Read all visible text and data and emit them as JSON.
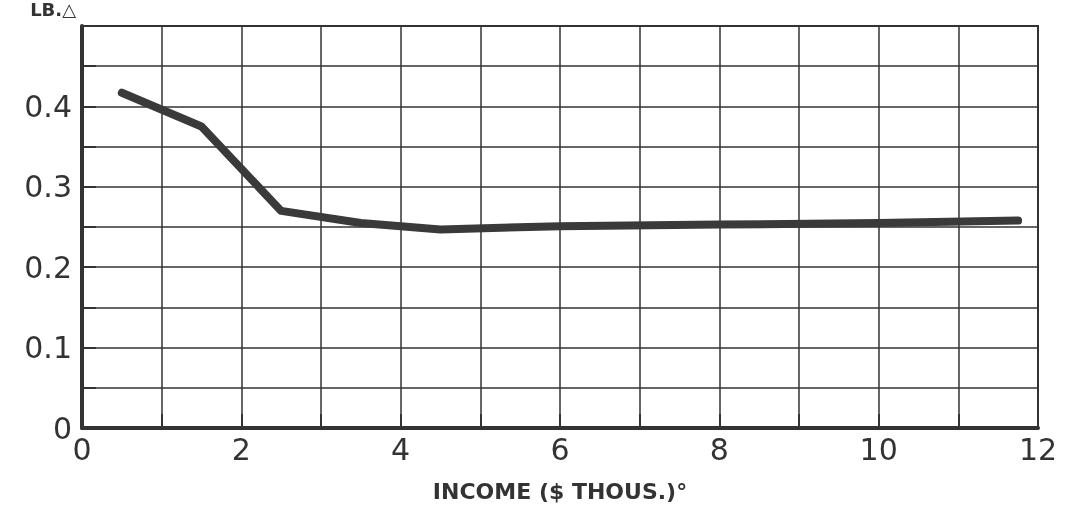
{
  "chart_data": {
    "type": "line",
    "xlabel": "INCOME ($ THOUS.)°",
    "ylabel": "LB.△",
    "x": [
      0.5,
      1.5,
      2.5,
      3.5,
      4.5,
      6,
      8,
      10,
      11.75
    ],
    "series": [
      {
        "color": "#3a3a3a",
        "values": [
          0.417,
          0.375,
          0.27,
          0.255,
          0.247,
          0.251,
          0.253,
          0.255,
          0.258
        ]
      }
    ],
    "xlim": [
      0,
      12
    ],
    "ylim": [
      0,
      0.5
    ],
    "xticks": [
      0,
      {
        "value": 1,
        "label": null
      },
      2,
      {
        "value": 3,
        "label": null
      },
      4,
      {
        "value": 5,
        "label": null
      },
      6,
      {
        "value": 7,
        "label": null
      },
      8,
      {
        "value": 9,
        "label": null
      },
      10,
      {
        "value": 11,
        "label": null
      },
      12
    ],
    "yticks": [
      0,
      {
        "value": 0.05,
        "label": null
      },
      0.1,
      {
        "value": 0.15,
        "label": null
      },
      0.2,
      {
        "value": 0.25,
        "label": null
      },
      0.3,
      {
        "value": 0.35,
        "label": null
      },
      0.4,
      {
        "value": 0.45,
        "label": null
      },
      {
        "value": 0.5,
        "label": null
      }
    ],
    "grid": true,
    "marker": "none",
    "line_style": "solid"
  }
}
